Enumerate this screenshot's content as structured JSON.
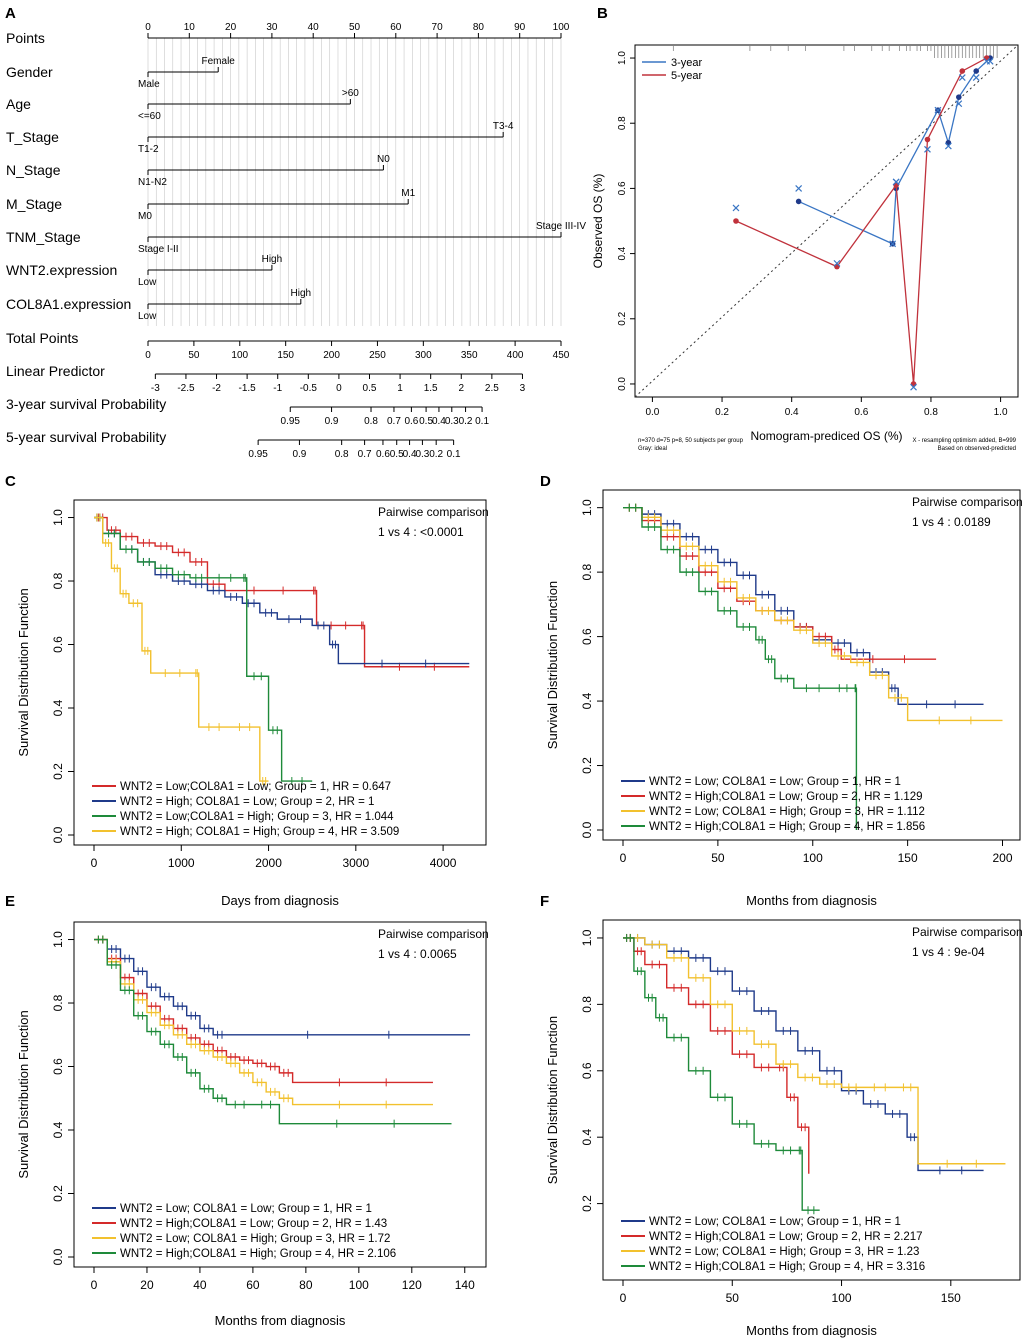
{
  "panel_labels": [
    "A",
    "B",
    "C",
    "D",
    "E",
    "F"
  ],
  "colors": {
    "red": "#d42a2a",
    "blue": "#1f3a8a",
    "green": "#1e8a3a",
    "yellow": "#f2c12e",
    "calib_blue": "#3a76c4",
    "calib_red": "#c0323c",
    "axis": "#000000",
    "nomo_grid": "#c8c8c8"
  },
  "nomogram": {
    "title_panel": "A",
    "points_axis": {
      "label": "Points",
      "ticks": [
        0,
        10,
        20,
        30,
        40,
        50,
        60,
        70,
        80,
        90,
        100
      ]
    },
    "variables": [
      {
        "label": "Gender",
        "low": "Male",
        "high": "Female",
        "points": 17
      },
      {
        "label": "Age",
        "low": "<=60",
        "high": ">60",
        "points": 49
      },
      {
        "label": "T_Stage",
        "low": "T1-2",
        "high": "T3-4",
        "points": 86
      },
      {
        "label": "N_Stage",
        "low": "N1-N2",
        "high": "N0",
        "points": 57
      },
      {
        "label": "M_Stage",
        "low": "M0",
        "high": "M1",
        "points": 63
      },
      {
        "label": "TNM_Stage",
        "low": "Stage I-II",
        "high": "Stage III-IV",
        "points": 100
      },
      {
        "label": "WNT2.expression",
        "low": "Low",
        "high": "High",
        "points": 30
      },
      {
        "label": "COL8A1.expression",
        "low": "Low",
        "high": "High",
        "points": 37
      }
    ],
    "total_points": {
      "label": "Total Points",
      "ticks": [
        0,
        50,
        100,
        150,
        200,
        250,
        300,
        350,
        400,
        450
      ]
    },
    "linear_predictor": {
      "label": "Linear Predictor",
      "ticks": [
        "-3",
        "-2.5",
        "-2",
        "-1.5",
        "-1",
        "-0.5",
        "0",
        "0.5",
        "1",
        "1.5",
        "2",
        "2.5",
        "3"
      ],
      "range": [
        -3,
        3
      ],
      "points_at_range": [
        8,
        408
      ]
    },
    "survival_3yr": {
      "label": "3-year survival Probability",
      "ticks": [
        "0.95",
        "0.9",
        "0.8",
        "0.7",
        "0.6",
        "0.5",
        "0.4",
        "0.3",
        "0.2",
        "0.1"
      ],
      "total_points": [
        155,
        200,
        243,
        268,
        287,
        303,
        317,
        331,
        346,
        364
      ]
    },
    "survival_5yr": {
      "label": "5-year survival Probability",
      "ticks": [
        "0.95",
        "0.9",
        "0.8",
        "0.7",
        "0.6",
        "0.5",
        "0.4",
        "0.3",
        "0.2",
        "0.1"
      ],
      "total_points": [
        120,
        165,
        211,
        236,
        256,
        271,
        285,
        299,
        314,
        333
      ]
    }
  },
  "chart_data": [
    {
      "panel": "B",
      "type": "line",
      "title": "",
      "xlabel": "Nomogram-prediced OS (%)",
      "ylabel": "Observed OS (%)",
      "xlim": [
        -0.05,
        1.05
      ],
      "ylim": [
        -0.04,
        1.04
      ],
      "xticks": [
        "0.0",
        "0.2",
        "0.4",
        "0.6",
        "0.8",
        "1.0"
      ],
      "yticks": [
        "0.0",
        "0.2",
        "0.4",
        "0.6",
        "0.8",
        "1.0"
      ],
      "legend": [
        "3-year",
        "5-year"
      ],
      "legend_position": "top-left",
      "series": [
        {
          "name": "3-year",
          "color": "#3a76c4",
          "x": [
            0.42,
            0.69,
            0.7,
            0.82,
            0.85,
            0.88,
            0.93,
            0.97
          ],
          "y": [
            0.56,
            0.43,
            0.6,
            0.84,
            0.74,
            0.88,
            0.96,
            1.0
          ],
          "cross_y": [
            0.6,
            0.43,
            0.62,
            0.84,
            0.73,
            0.86,
            0.94,
            0.99
          ]
        },
        {
          "name": "5-year",
          "color": "#c0323c",
          "x": [
            0.24,
            0.53,
            0.7,
            0.75,
            0.79,
            0.89,
            0.96
          ],
          "y": [
            0.5,
            0.36,
            0.61,
            0.0,
            0.75,
            0.96,
            1.0
          ],
          "cross_y": [
            0.54,
            0.37,
            0.62,
            -0.01,
            0.72,
            0.94,
            0.99
          ]
        }
      ],
      "rug_x": [
        0.06,
        0.28,
        0.34,
        0.39,
        0.44,
        0.55,
        0.58,
        0.63,
        0.66,
        0.68,
        0.71,
        0.73,
        0.74,
        0.76,
        0.77,
        0.79,
        0.8,
        0.81,
        0.82,
        0.83,
        0.84,
        0.85,
        0.86,
        0.87,
        0.88,
        0.89,
        0.9,
        0.91,
        0.92,
        0.93,
        0.94,
        0.95,
        0.96,
        0.97,
        0.98,
        0.99
      ],
      "footnote_left": "n=370 d=75 p=8, 50 subjects per group\nGray: ideal",
      "footnote_right": "X - resampling optimism added, B=999\nBased on observed-predicted"
    },
    {
      "panel": "C",
      "type": "line",
      "xlabel": "Days from diagnosis",
      "ylabel": "Survival Distribution Function",
      "xlim": [
        0,
        4400
      ],
      "xticks": [
        0,
        1000,
        2000,
        3000,
        4000
      ],
      "ylim": [
        0,
        1.03
      ],
      "yticks": [
        "0.0",
        "0.2",
        "0.4",
        "0.6",
        "0.8",
        "1.0"
      ],
      "annotation_title": "Pairwise comparison",
      "annotation_value": "1 vs 4 : <0.0001",
      "legend_position": "bottom-left",
      "series": [
        {
          "name": "WNT2 = Low;COL8A1 = Low;  Group = 1, HR = 0.647",
          "color": "#d42a2a",
          "x": [
            0,
            150,
            300,
            500,
            700,
            900,
            1100,
            1300,
            1500,
            2500,
            2550,
            3050,
            3100,
            4300
          ],
          "y": [
            1.0,
            0.96,
            0.94,
            0.92,
            0.91,
            0.89,
            0.86,
            0.79,
            0.77,
            0.77,
            0.66,
            0.66,
            0.53,
            0.53
          ]
        },
        {
          "name": "WNT2 = High; COL8A1 = Low;  Group = 2, HR = 1",
          "color": "#1f3a8a",
          "x": [
            0,
            100,
            300,
            500,
            700,
            900,
            1100,
            1300,
            1500,
            1700,
            1900,
            2100,
            2500,
            2700,
            2800,
            4300
          ],
          "y": [
            1.0,
            0.95,
            0.9,
            0.86,
            0.82,
            0.8,
            0.79,
            0.77,
            0.75,
            0.73,
            0.7,
            0.68,
            0.66,
            0.6,
            0.54,
            0.54
          ]
        },
        {
          "name": "WNT2 = Low;COL8A1 = High; Group = 3, HR = 1.044",
          "color": "#1e8a3a",
          "x": [
            0,
            100,
            300,
            500,
            700,
            900,
            1100,
            1300,
            1700,
            1750,
            2000,
            2150,
            2500
          ],
          "y": [
            1.0,
            0.95,
            0.9,
            0.86,
            0.84,
            0.82,
            0.81,
            0.81,
            0.81,
            0.5,
            0.33,
            0.17,
            0.17
          ]
        },
        {
          "name": "WNT2 = High; COL8A1 = High; Group = 4, HR = 3.509",
          "color": "#f2c12e",
          "x": [
            0,
            100,
            200,
            300,
            400,
            550,
            650,
            1150,
            1200,
            1550,
            1900,
            2000
          ],
          "y": [
            1.0,
            0.92,
            0.84,
            0.76,
            0.73,
            0.58,
            0.51,
            0.51,
            0.34,
            0.34,
            0.17,
            0.17
          ]
        }
      ]
    },
    {
      "panel": "D",
      "type": "line",
      "xlabel": "Months from diagnosis",
      "ylabel": "Survival Distribution Function",
      "xlim": [
        0,
        205
      ],
      "xticks": [
        0,
        50,
        100,
        150,
        200
      ],
      "ylim": [
        0,
        1.03
      ],
      "yticks": [
        "0.0",
        "0.2",
        "0.4",
        "0.6",
        "0.8",
        "1.0"
      ],
      "annotation_title": "Pairwise comparison",
      "annotation_value": "1 vs 4 : 0.0189",
      "legend_position": "bottom-left",
      "series": [
        {
          "name": "WNT2 = Low; COL8A1 = Low;  Group = 1, HR = 1",
          "color": "#1f3a8a",
          "x": [
            0,
            10,
            20,
            30,
            40,
            50,
            60,
            70,
            80,
            90,
            100,
            110,
            120,
            130,
            140,
            145,
            190
          ],
          "y": [
            1.0,
            0.98,
            0.95,
            0.91,
            0.87,
            0.83,
            0.79,
            0.73,
            0.68,
            0.63,
            0.59,
            0.58,
            0.55,
            0.49,
            0.44,
            0.39,
            0.39
          ]
        },
        {
          "name": "WNT2 = High;COL8A1 = Low;  Group = 2, HR = 1.129",
          "color": "#d42a2a",
          "x": [
            0,
            10,
            20,
            30,
            40,
            50,
            60,
            70,
            80,
            90,
            100,
            110,
            115,
            165
          ],
          "y": [
            1.0,
            0.96,
            0.91,
            0.85,
            0.8,
            0.75,
            0.71,
            0.68,
            0.65,
            0.63,
            0.6,
            0.56,
            0.53,
            0.53
          ]
        },
        {
          "name": "WNT2 = Low; COL8A1 = High; Group = 3, HR = 1.112",
          "color": "#f2c12e",
          "x": [
            0,
            10,
            20,
            30,
            40,
            50,
            60,
            70,
            80,
            90,
            100,
            110,
            120,
            130,
            140,
            150,
            200
          ],
          "y": [
            1.0,
            0.97,
            0.93,
            0.88,
            0.82,
            0.77,
            0.72,
            0.68,
            0.65,
            0.62,
            0.58,
            0.54,
            0.52,
            0.48,
            0.41,
            0.34,
            0.34
          ]
        },
        {
          "name": "WNT2 = High;COL8A1 = High; Group = 4, HR = 1.856",
          "color": "#1e8a3a",
          "x": [
            0,
            10,
            20,
            30,
            40,
            50,
            60,
            70,
            75,
            80,
            90,
            110,
            122,
            123
          ],
          "y": [
            1.0,
            0.94,
            0.87,
            0.8,
            0.74,
            0.68,
            0.63,
            0.59,
            0.53,
            0.47,
            0.44,
            0.44,
            0.44,
            0.0
          ]
        }
      ]
    },
    {
      "panel": "E",
      "type": "line",
      "xlabel": "Months from diagnosis",
      "ylabel": "Survival Distribution Function",
      "xlim": [
        0,
        145
      ],
      "xticks": [
        0,
        20,
        40,
        60,
        80,
        100,
        120,
        140
      ],
      "ylim": [
        0,
        1.03
      ],
      "yticks": [
        "0.0",
        "0.2",
        "0.4",
        "0.6",
        "0.8",
        "1.0"
      ],
      "annotation_title": "Pairwise comparison",
      "annotation_value": "1 vs 4 : 0.0065",
      "legend_position": "bottom-left",
      "series": [
        {
          "name": "WNT2 = Low; COL8A1 = Low;  Group = 1, HR = 1",
          "color": "#1f3a8a",
          "x": [
            0,
            5,
            10,
            15,
            20,
            25,
            30,
            35,
            40,
            45,
            50,
            142
          ],
          "y": [
            1.0,
            0.97,
            0.94,
            0.9,
            0.85,
            0.82,
            0.79,
            0.76,
            0.72,
            0.7,
            0.7,
            0.7
          ]
        },
        {
          "name": "WNT2 = High;COL8A1 = Low;  Group = 2, HR = 1.43",
          "color": "#d42a2a",
          "x": [
            0,
            5,
            10,
            15,
            20,
            25,
            30,
            35,
            40,
            45,
            50,
            55,
            60,
            65,
            70,
            75,
            128
          ],
          "y": [
            1.0,
            0.94,
            0.88,
            0.83,
            0.79,
            0.75,
            0.72,
            0.69,
            0.67,
            0.65,
            0.63,
            0.62,
            0.61,
            0.6,
            0.58,
            0.55,
            0.55
          ]
        },
        {
          "name": "WNT2 = Low; COL8A1 = High; Group = 3, HR = 1.72",
          "color": "#f2c12e",
          "x": [
            0,
            5,
            10,
            15,
            20,
            25,
            30,
            35,
            40,
            45,
            50,
            55,
            60,
            65,
            70,
            75,
            128
          ],
          "y": [
            1.0,
            0.93,
            0.86,
            0.81,
            0.77,
            0.73,
            0.7,
            0.67,
            0.65,
            0.63,
            0.61,
            0.58,
            0.55,
            0.52,
            0.5,
            0.48,
            0.48
          ]
        },
        {
          "name": "WNT2 = High;COL8A1 = High; Group = 4, HR = 2.106",
          "color": "#1e8a3a",
          "x": [
            0,
            5,
            10,
            15,
            20,
            25,
            30,
            35,
            40,
            45,
            50,
            60,
            70,
            135
          ],
          "y": [
            1.0,
            0.92,
            0.84,
            0.76,
            0.71,
            0.67,
            0.63,
            0.58,
            0.53,
            0.5,
            0.48,
            0.48,
            0.42,
            0.42
          ]
        }
      ]
    },
    {
      "panel": "F",
      "type": "line",
      "xlabel": "Months from diagnosis",
      "ylabel": "Survival Distribution Function",
      "xlim": [
        0,
        178
      ],
      "xticks": [
        0,
        50,
        100,
        150
      ],
      "ylim": [
        0,
        1.03
      ],
      "yticks": [
        "0.2",
        "0.4",
        "0.6",
        "0.8",
        "1.0"
      ],
      "annotation_title": "Pairwise comparison",
      "annotation_value": "1 vs 4 : 9e-04",
      "legend_position": "bottom-left",
      "series": [
        {
          "name": "WNT2 = Low; COL8A1 = Low;  Group = 1, HR = 1",
          "color": "#1f3a8a",
          "x": [
            0,
            10,
            20,
            30,
            40,
            50,
            60,
            70,
            80,
            90,
            100,
            110,
            120,
            130,
            135,
            165
          ],
          "y": [
            1.0,
            0.98,
            0.96,
            0.94,
            0.9,
            0.84,
            0.78,
            0.72,
            0.66,
            0.6,
            0.54,
            0.5,
            0.47,
            0.4,
            0.3,
            0.3
          ]
        },
        {
          "name": "WNT2 = High;COL8A1 = Low;  Group = 2, HR = 2.217",
          "color": "#d42a2a",
          "x": [
            0,
            5,
            10,
            20,
            30,
            40,
            50,
            60,
            70,
            75,
            80,
            85
          ],
          "y": [
            1.0,
            0.96,
            0.92,
            0.85,
            0.8,
            0.72,
            0.65,
            0.61,
            0.61,
            0.52,
            0.43,
            0.29
          ]
        },
        {
          "name": "WNT2 = Low; COL8A1 = High; Group = 3, HR = 1.23",
          "color": "#f2c12e",
          "x": [
            0,
            10,
            20,
            30,
            40,
            50,
            60,
            70,
            80,
            90,
            100,
            110,
            125,
            135,
            175
          ],
          "y": [
            1.0,
            0.98,
            0.94,
            0.88,
            0.8,
            0.72,
            0.68,
            0.62,
            0.58,
            0.56,
            0.55,
            0.55,
            0.55,
            0.32,
            0.32
          ]
        },
        {
          "name": "WNT2 = High;COL8A1 = High; Group = 4, HR = 3.316",
          "color": "#1e8a3a",
          "x": [
            0,
            5,
            10,
            15,
            20,
            30,
            40,
            50,
            60,
            70,
            80,
            82,
            90
          ],
          "y": [
            1.0,
            0.9,
            0.82,
            0.76,
            0.7,
            0.6,
            0.52,
            0.44,
            0.38,
            0.36,
            0.36,
            0.18,
            0.18
          ]
        }
      ]
    }
  ]
}
